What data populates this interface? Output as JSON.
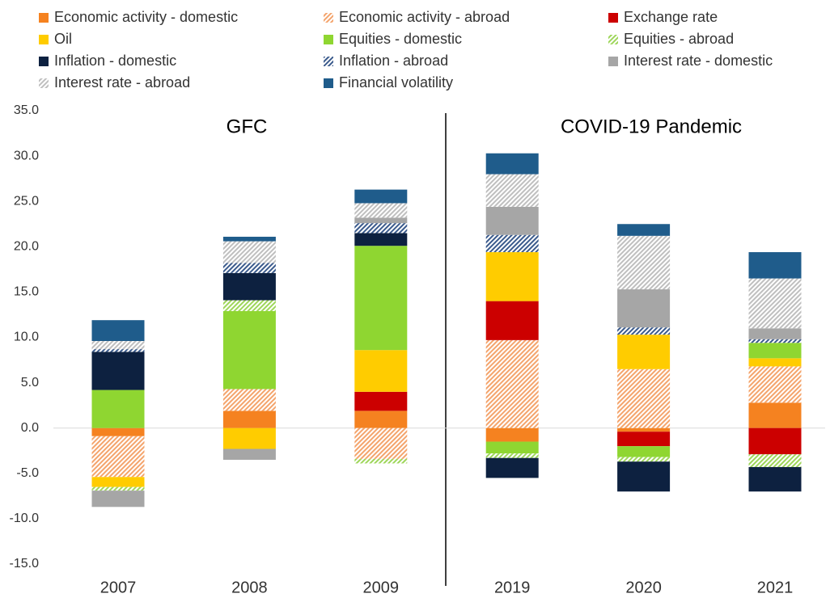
{
  "chart_data": {
    "type": "stacked_bar",
    "categories": [
      "2007",
      "2008",
      "2009",
      "2019",
      "2020",
      "2021"
    ],
    "annotations": [
      "GFC",
      "COVID-19 Pandemic"
    ],
    "series": [
      {
        "name": "Economic activity - domestic",
        "color": "#f58220",
        "hatched": false,
        "values": [
          -0.9,
          1.9,
          1.9,
          -1.5,
          -0.4,
          2.8
        ]
      },
      {
        "name": "Economic activity - abroad",
        "color": "#f4a46c",
        "hatched": true,
        "values": [
          -4.5,
          2.4,
          -3.4,
          9.7,
          6.5,
          4.0
        ]
      },
      {
        "name": "Exchange rate",
        "color": "#cc0000",
        "hatched": false,
        "values": [
          0,
          0,
          2.1,
          4.3,
          -1.6,
          -2.9
        ]
      },
      {
        "name": "Oil",
        "color": "#ffcc00",
        "hatched": false,
        "values": [
          -1.1,
          -2.3,
          4.6,
          5.4,
          3.8,
          0.9
        ]
      },
      {
        "name": "Equities - domestic",
        "color": "#8fd631",
        "hatched": false,
        "values": [
          4.2,
          8.6,
          11.5,
          -1.3,
          -1.2,
          1.7
        ]
      },
      {
        "name": "Equities - abroad",
        "color": "#9ed65a",
        "hatched": true,
        "values": [
          -0.4,
          1.2,
          -0.5,
          -0.5,
          -0.5,
          -1.4
        ]
      },
      {
        "name": "Inflation - domestic",
        "color": "#0d2140",
        "hatched": false,
        "values": [
          4.2,
          3.0,
          1.4,
          -2.2,
          -3.3,
          -2.7
        ]
      },
      {
        "name": "Inflation - abroad",
        "color": "#3a5a8c",
        "hatched": true,
        "values": [
          0.3,
          1.1,
          1.1,
          1.9,
          0.8,
          0.4
        ]
      },
      {
        "name": "Interest rate - domestic",
        "color": "#a6a6a6",
        "hatched": false,
        "values": [
          -1.8,
          -1.2,
          0.6,
          3.1,
          4.2,
          1.2
        ]
      },
      {
        "name": "Interest rate - abroad",
        "color": "#bfbfbf",
        "hatched": true,
        "values": [
          0.9,
          2.4,
          1.6,
          3.6,
          5.9,
          5.5
        ]
      },
      {
        "name": "Financial volatility",
        "color": "#1f5c8b",
        "hatched": false,
        "values": [
          2.3,
          0.5,
          1.5,
          2.3,
          1.3,
          2.9
        ]
      }
    ],
    "ylim": [
      -15,
      35
    ],
    "yticks": [
      {
        "value": -15,
        "label": "-15.0"
      },
      {
        "value": -10,
        "label": "-10.0"
      },
      {
        "value": -5,
        "label": "-5.0"
      },
      {
        "value": 0,
        "label": "0.0"
      },
      {
        "value": 5,
        "label": "5.0"
      },
      {
        "value": 10,
        "label": "10.0"
      },
      {
        "value": 15,
        "label": "15.0"
      },
      {
        "value": 20,
        "label": "20.0"
      },
      {
        "value": 25,
        "label": "25.0"
      },
      {
        "value": 30,
        "label": "30.0"
      },
      {
        "value": 35,
        "label": "35.0"
      }
    ]
  }
}
